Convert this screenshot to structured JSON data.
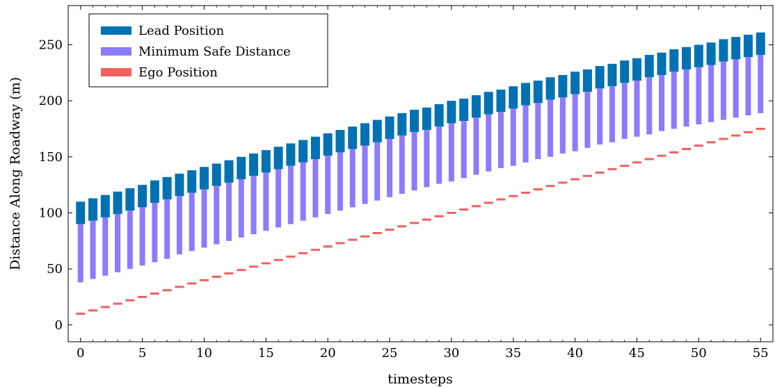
{
  "chart_data": {
    "type": "bar",
    "title": "",
    "xlabel": "timesteps",
    "ylabel": "Distance Along Roadway (m)",
    "xlim": [
      -1,
      56
    ],
    "ylim": [
      -15,
      285
    ],
    "xticks": [
      0,
      5,
      10,
      15,
      20,
      25,
      30,
      35,
      40,
      45,
      50,
      55
    ],
    "yticks": [
      0,
      50,
      100,
      150,
      200,
      250
    ],
    "legend_position": "top-left",
    "x": [
      0,
      1,
      2,
      3,
      4,
      5,
      6,
      7,
      8,
      9,
      10,
      11,
      12,
      13,
      14,
      15,
      16,
      17,
      18,
      19,
      20,
      21,
      22,
      23,
      24,
      25,
      26,
      27,
      28,
      29,
      30,
      31,
      32,
      33,
      34,
      35,
      36,
      37,
      38,
      39,
      40,
      41,
      42,
      43,
      44,
      45,
      46,
      47,
      48,
      49,
      50,
      51,
      52,
      53,
      54,
      55
    ],
    "series": [
      {
        "name": "Lead Position",
        "color": "#0071b2",
        "kind": "range",
        "low": [
          90,
          93,
          96,
          99,
          102,
          105,
          109,
          112,
          115,
          118,
          121,
          124,
          127,
          130,
          133,
          136,
          139,
          142,
          145,
          148,
          151,
          154,
          157,
          160,
          163,
          166,
          169,
          172,
          174,
          177,
          180,
          182,
          185,
          188,
          190,
          193,
          196,
          198,
          201,
          203,
          206,
          208,
          211,
          213,
          216,
          218,
          221,
          223,
          226,
          228,
          230,
          232,
          235,
          237,
          239,
          241
        ],
        "high": [
          110,
          113,
          116,
          119,
          122,
          125,
          129,
          132,
          135,
          138,
          141,
          144,
          147,
          150,
          153,
          156,
          159,
          162,
          165,
          168,
          171,
          174,
          177,
          180,
          183,
          186,
          189,
          192,
          194,
          197,
          200,
          202,
          205,
          208,
          210,
          213,
          216,
          218,
          221,
          223,
          226,
          228,
          231,
          233,
          236,
          238,
          241,
          243,
          246,
          248,
          250,
          252,
          255,
          257,
          259,
          261
        ]
      },
      {
        "name": "Minimum Safe Distance",
        "color": "#8c7bff",
        "kind": "range",
        "low": [
          38,
          41,
          44,
          47,
          50,
          53,
          56,
          59,
          63,
          66,
          69,
          72,
          75,
          78,
          81,
          84,
          87,
          90,
          93,
          96,
          99,
          102,
          105,
          108,
          111,
          114,
          117,
          120,
          123,
          126,
          128,
          131,
          134,
          137,
          140,
          142,
          145,
          148,
          150,
          153,
          155,
          158,
          161,
          163,
          166,
          168,
          170,
          173,
          175,
          177,
          179,
          181,
          183,
          185,
          187,
          189
        ],
        "high": [
          90,
          93,
          96,
          99,
          102,
          105,
          109,
          112,
          115,
          118,
          121,
          124,
          127,
          130,
          133,
          136,
          139,
          142,
          145,
          148,
          151,
          154,
          157,
          160,
          163,
          166,
          169,
          172,
          174,
          177,
          180,
          182,
          185,
          188,
          190,
          193,
          196,
          198,
          201,
          203,
          206,
          208,
          211,
          213,
          216,
          218,
          221,
          223,
          226,
          228,
          230,
          232,
          235,
          237,
          239,
          241
        ]
      },
      {
        "name": "Ego Position",
        "color": "#f0605d",
        "kind": "point",
        "values": [
          10,
          13,
          16,
          19,
          22,
          25,
          28,
          31,
          34,
          37,
          40,
          43,
          46,
          49,
          52,
          55,
          58,
          61,
          64,
          67,
          70,
          73,
          76,
          79,
          82,
          85,
          88,
          91,
          94,
          97,
          100,
          103,
          106,
          109,
          112,
          115,
          118,
          121,
          124,
          127,
          130,
          133,
          136,
          139,
          142,
          145,
          148,
          151,
          154,
          157,
          160,
          163,
          166,
          169,
          172,
          175
        ]
      }
    ]
  }
}
